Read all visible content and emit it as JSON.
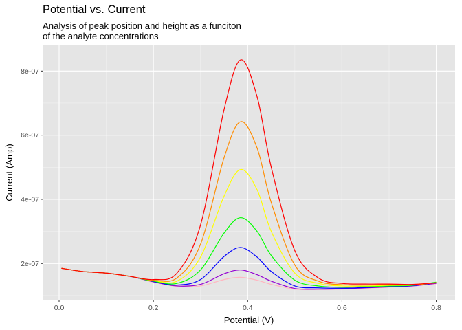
{
  "chart_data": {
    "type": "line",
    "title": "Potential vs. Current",
    "subtitle_lines": [
      "Analysis of peak position and height as a funciton",
      "of the analyte concentrations"
    ],
    "xlabel": "Potential (V)",
    "ylabel": "Current (Amp)",
    "xlim": [
      -0.035,
      0.84
    ],
    "ylim": [
      8.7e-08,
      8.8e-07
    ],
    "x_ticks": [
      0.0,
      0.2,
      0.4,
      0.6,
      0.8
    ],
    "x_tick_labels": [
      "0.0",
      "0.2",
      "0.4",
      "0.6",
      "0.8"
    ],
    "y_ticks": [
      2e-07,
      4e-07,
      6e-07,
      8e-07
    ],
    "y_tick_labels": [
      "2e-07",
      "4e-07",
      "6e-07",
      "8e-07"
    ],
    "grid": true,
    "background": "#e5e5e5",
    "x": [
      0.005,
      0.05,
      0.1,
      0.15,
      0.2,
      0.25,
      0.3,
      0.35,
      0.385,
      0.42,
      0.45,
      0.5,
      0.55,
      0.6,
      0.65,
      0.7,
      0.75,
      0.8
    ],
    "series": [
      {
        "color": "#ff0000",
        "values": [
          1.85e-07,
          1.75e-07,
          1.7e-07,
          1.6e-07,
          1.5e-07,
          1.7e-07,
          3.2e-07,
          6.8e-07,
          8.35e-07,
          7.2e-07,
          5e-07,
          2.4e-07,
          1.55e-07,
          1.38e-07,
          1.36e-07,
          1.36e-07,
          1.35e-07,
          1.4e-07
        ]
      },
      {
        "color": "#ff8c00",
        "values": [
          1.85e-07,
          1.75e-07,
          1.7e-07,
          1.6e-07,
          1.48e-07,
          1.55e-07,
          2.6e-07,
          5.3e-07,
          6.42e-07,
          5.6e-07,
          3.9e-07,
          1.95e-07,
          1.45e-07,
          1.34e-07,
          1.33e-07,
          1.34e-07,
          1.34e-07,
          1.4e-07
        ]
      },
      {
        "color": "#ffff00",
        "values": [
          1.85e-07,
          1.75e-07,
          1.7e-07,
          1.6e-07,
          1.47e-07,
          1.45e-07,
          2.2e-07,
          4.1e-07,
          4.93e-07,
          4.3e-07,
          3e-07,
          1.7e-07,
          1.38e-07,
          1.3e-07,
          1.3e-07,
          1.32e-07,
          1.33e-07,
          1.4e-07
        ]
      },
      {
        "color": "#00ff00",
        "values": [
          1.85e-07,
          1.75e-07,
          1.7e-07,
          1.6e-07,
          1.45e-07,
          1.38e-07,
          1.8e-07,
          2.95e-07,
          3.43e-07,
          3e-07,
          2.25e-07,
          1.48e-07,
          1.3e-07,
          1.26e-07,
          1.28e-07,
          1.3e-07,
          1.32e-07,
          1.42e-07
        ]
      },
      {
        "color": "#0000ff",
        "values": [
          1.85e-07,
          1.75e-07,
          1.7e-07,
          1.6e-07,
          1.44e-07,
          1.33e-07,
          1.5e-07,
          2.22e-07,
          2.5e-07,
          2.2e-07,
          1.75e-07,
          1.3e-07,
          1.24e-07,
          1.23e-07,
          1.25e-07,
          1.28e-07,
          1.31e-07,
          1.4e-07
        ]
      },
      {
        "color": "#9400d3",
        "values": [
          1.85e-07,
          1.75e-07,
          1.7e-07,
          1.6e-07,
          1.43e-07,
          1.3e-07,
          1.35e-07,
          1.68e-07,
          1.8e-07,
          1.65e-07,
          1.45e-07,
          1.22e-07,
          1.2e-07,
          1.21e-07,
          1.24e-07,
          1.27e-07,
          1.3e-07,
          1.38e-07
        ]
      },
      {
        "color": "#ffb6c1",
        "values": [
          1.85e-07,
          1.75e-07,
          1.7e-07,
          1.6e-07,
          1.42e-07,
          1.29e-07,
          1.3e-07,
          1.5e-07,
          1.57e-07,
          1.48e-07,
          1.35e-07,
          1.2e-07,
          1.19e-07,
          1.2e-07,
          1.23e-07,
          1.26e-07,
          1.3e-07,
          1.37e-07
        ]
      }
    ]
  }
}
